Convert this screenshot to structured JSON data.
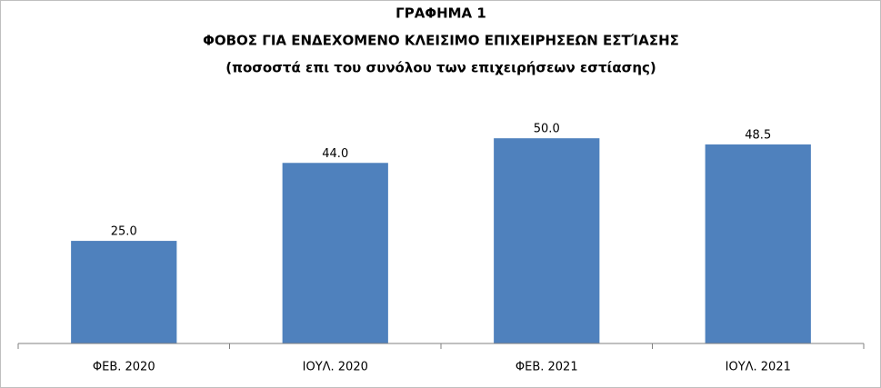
{
  "chart_data": {
    "type": "bar",
    "title": "ΓΡΑΦΗΜΑ 1",
    "subtitle": "ΦΟΒΟΣ ΓΙΑ ΕΝΔΕΧΟΜΕΝΟ ΚΛΕΙΣΙΜΟ ΕΠΙΧΕΙΡΗΣΕΩΝ ΕΣΤΊΑΣΗΣ",
    "note": "(ποσοστά επι του συνόλου των επιχειρήσεων εστίασης)",
    "categories": [
      "ΦΕΒ. 2020",
      "ΙΟΥΛ. 2020",
      "ΦΕΒ. 2021",
      "ΙΟΥΛ. 2021"
    ],
    "values": [
      25,
      44,
      50,
      48.5
    ],
    "value_labels": [
      "25.0",
      "44.0",
      "50.0",
      "48.5"
    ],
    "color": "#4f81bd",
    "ylim": [
      0,
      60
    ]
  }
}
